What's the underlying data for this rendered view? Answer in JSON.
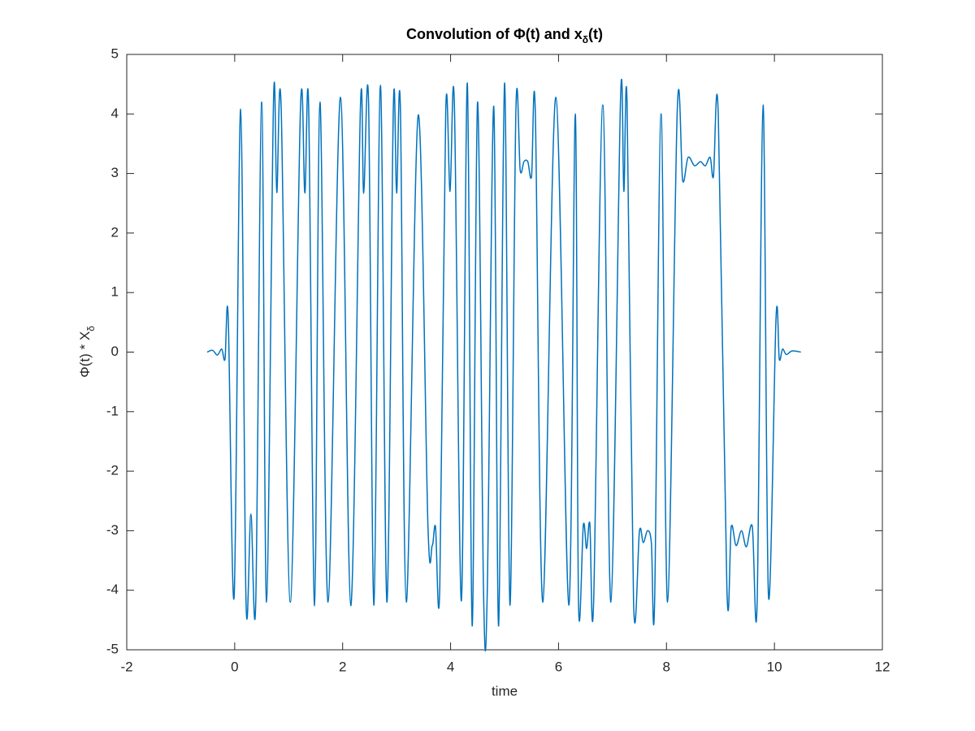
{
  "chart_data": {
    "type": "line",
    "title": [
      "Convolution of Φ(t) and x",
      "δ",
      "(t)"
    ],
    "xlabel": "time",
    "ylabel": [
      "Φ(t) * X",
      "δ"
    ],
    "xlim": [
      -2,
      12
    ],
    "xticks": [
      -2,
      0,
      2,
      4,
      6,
      8,
      10,
      12
    ],
    "ylim": [
      -5,
      5
    ],
    "yticks": [
      -5,
      -4,
      -3,
      -2,
      -1,
      0,
      1,
      2,
      3,
      4,
      5
    ],
    "grid": false,
    "series": [
      {
        "color": "#0072bd",
        "x": [
          -0.51,
          -0.41,
          -0.32,
          -0.24,
          -0.18,
          -0.12,
          -0.01,
          0.11,
          0.21,
          0.3,
          0.39,
          0.5,
          0.59,
          0.72,
          0.78,
          0.86,
          1.03,
          1.22,
          1.3,
          1.37,
          1.48,
          1.58,
          1.73,
          1.96,
          2.15,
          2.33,
          2.39,
          2.48,
          2.58,
          2.7,
          2.82,
          2.94,
          3.0,
          3.07,
          3.18,
          3.4,
          3.58,
          3.66,
          3.72,
          3.8,
          3.91,
          3.99,
          4.07,
          4.2,
          4.31,
          4.4,
          4.5,
          4.61,
          4.68,
          4.8,
          4.89,
          5.0,
          5.1,
          5.21,
          5.29,
          5.36,
          5.43,
          5.5,
          5.57,
          5.71,
          5.95,
          6.19,
          6.31,
          6.37,
          6.46,
          6.52,
          6.58,
          6.65,
          6.82,
          6.97,
          7.15,
          7.21,
          7.27,
          7.39,
          7.5,
          7.57,
          7.65,
          7.72,
          7.78,
          7.9,
          8.02,
          8.2,
          8.3,
          8.4,
          8.52,
          8.63,
          8.72,
          8.81,
          8.87,
          8.96,
          9.12,
          9.2,
          9.29,
          9.39,
          9.48,
          9.59,
          9.68,
          9.79,
          9.89,
          10.03,
          10.09,
          10.15,
          10.22,
          10.33,
          10.49
        ],
        "values": [
          0,
          0.03,
          -0.05,
          0.05,
          -0.12,
          0.58,
          -4.1,
          4.08,
          -4.2,
          -2.72,
          -4.2,
          4.2,
          -4.2,
          4.25,
          2.68,
          4.13,
          -4.2,
          4.13,
          2.67,
          4.13,
          -4.26,
          4.2,
          -4.2,
          4.28,
          -4.26,
          4.13,
          2.67,
          4.2,
          -4.25,
          4.48,
          -4.2,
          4.13,
          2.67,
          4.1,
          -4.2,
          3.98,
          -2.9,
          -3.25,
          -2.93,
          -3.95,
          4.05,
          2.7,
          4.17,
          -4.18,
          4.52,
          -4.6,
          4.2,
          -4.0,
          -4.0,
          4.13,
          -4.6,
          4.52,
          -4.25,
          4.05,
          3.05,
          3.2,
          3.2,
          2.95,
          4.02,
          -4.2,
          4.28,
          -4.25,
          4.0,
          -4.2,
          -2.9,
          -3.3,
          -2.88,
          -4.2,
          4.15,
          -4.2,
          4.3,
          2.7,
          4.17,
          -4.2,
          -3.0,
          -3.2,
          -3.0,
          -3.2,
          -4.2,
          4.0,
          -4.2,
          4.07,
          2.88,
          3.27,
          3.13,
          3.2,
          3.13,
          3.27,
          2.95,
          3.98,
          -4.0,
          -2.93,
          -3.25,
          -3.0,
          -3.27,
          -2.93,
          -4.2,
          4.15,
          -4.1,
          0.58,
          -0.12,
          0.05,
          -0.04,
          0.02,
          0
        ]
      }
    ]
  }
}
